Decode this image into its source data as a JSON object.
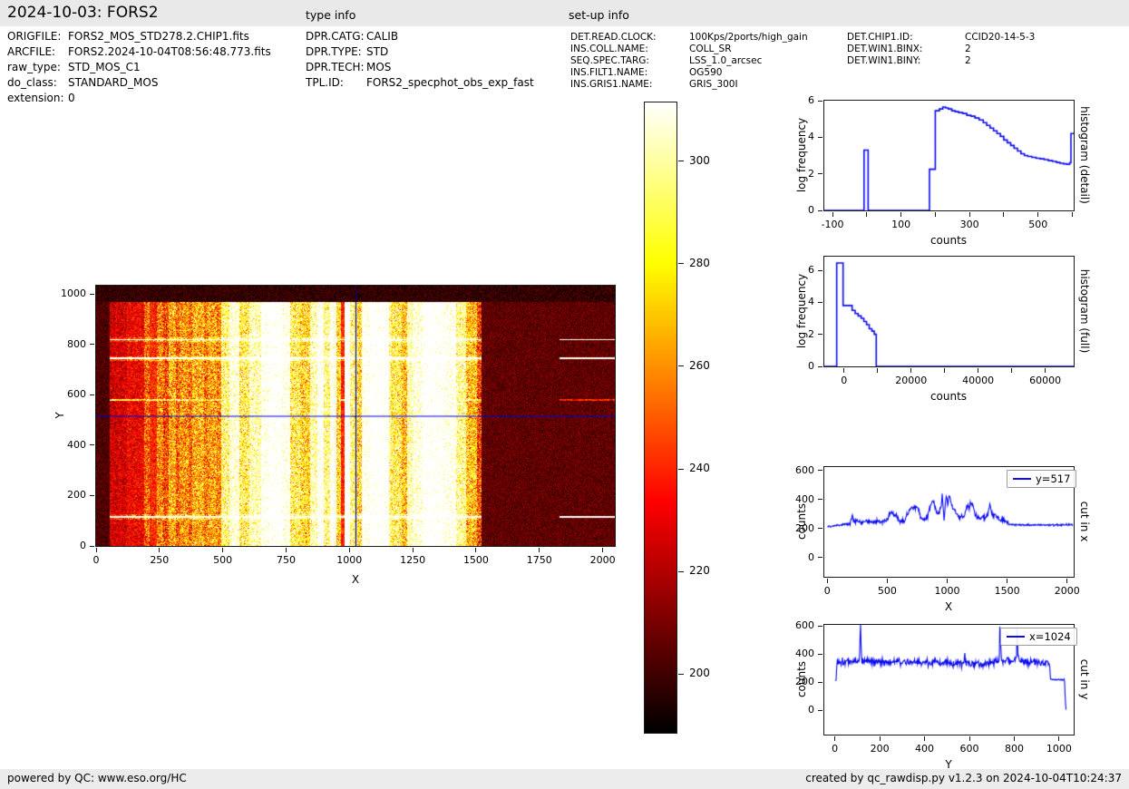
{
  "header": {
    "title": "2024-10-03: FORS2",
    "type_info_label": "type info",
    "setup_info_label": "set-up info"
  },
  "file_info": {
    "rows": [
      {
        "label": "ORIGFILE:",
        "value": "FORS2_MOS_STD278.2.CHIP1.fits"
      },
      {
        "label": "ARCFILE:",
        "value": "FORS2.2024-10-04T08:56:48.773.fits"
      },
      {
        "label": "raw_type:",
        "value": "STD_MOS_C1"
      },
      {
        "label": "do_class:",
        "value": "STANDARD_MOS"
      },
      {
        "label": "extension:",
        "value": "0"
      }
    ]
  },
  "type_info": {
    "rows": [
      {
        "label": "DPR.CATG:",
        "value": "CALIB"
      },
      {
        "label": "DPR.TYPE:",
        "value": "STD"
      },
      {
        "label": "DPR.TECH:",
        "value": "MOS"
      },
      {
        "label": "TPL.ID:",
        "value": "FORS2_specphot_obs_exp_fast"
      }
    ]
  },
  "setup_info": {
    "col1": [
      {
        "label": "DET.READ.CLOCK:",
        "value": "100Kps/2ports/high_gain"
      },
      {
        "label": "INS.COLL.NAME:",
        "value": "COLL_SR"
      },
      {
        "label": "SEQ.SPEC.TARG:",
        "value": "LSS_1.0_arcsec"
      },
      {
        "label": "INS.FILT1.NAME:",
        "value": "OG590"
      },
      {
        "label": "INS.GRIS1.NAME:",
        "value": "GRIS_300I"
      }
    ],
    "col2": [
      {
        "label": "DET.CHIP1.ID:",
        "value": "CCID20-14-5-3"
      },
      {
        "label": "DET.WIN1.BINX:",
        "value": "2"
      },
      {
        "label": "DET.WIN1.BINY:",
        "value": "2"
      }
    ]
  },
  "footer": {
    "left": "powered by QC: www.eso.org/HC",
    "right": "created by qc_rawdisp.py v1.2.3 on 2024-10-04T10:24:37"
  },
  "colors": {
    "line_blue": "#0b0bf0",
    "crosshair_h": "#0000e0",
    "crosshair_v": "#00007a",
    "header_bg": "#e9e9e9",
    "footer_bg": "#ececec",
    "spine": "#1a1a1a"
  },
  "chart_data": [
    {
      "id": "raw_image",
      "type": "heatmap",
      "xlabel": "X",
      "ylabel": "Y",
      "xlim": [
        0,
        2048
      ],
      "ylim": [
        0,
        1034
      ],
      "xticks": [
        0,
        250,
        500,
        750,
        1000,
        1250,
        1500,
        1750,
        2000
      ],
      "yticks": [
        0,
        200,
        400,
        600,
        800,
        1000
      ],
      "colormap": "hot",
      "vmin": 188,
      "vmax": 312,
      "crosshair": {
        "x": 1024,
        "y": 517
      },
      "dark_top_y": 968,
      "exposed_x": [
        55,
        1520
      ],
      "right_lines_x": 1828,
      "colorbar": {
        "range": [
          188.5,
          311.5
        ],
        "ticks": [
          300,
          280,
          260,
          240,
          220,
          200
        ]
      },
      "stripes": [
        [
          0,
          55,
          202
        ],
        [
          55,
          120,
          226
        ],
        [
          120,
          190,
          232
        ],
        [
          190,
          210,
          252
        ],
        [
          210,
          240,
          240
        ],
        [
          240,
          265,
          258
        ],
        [
          265,
          285,
          245
        ],
        [
          285,
          315,
          268
        ],
        [
          315,
          330,
          250
        ],
        [
          330,
          365,
          262
        ],
        [
          365,
          380,
          252
        ],
        [
          380,
          425,
          268
        ],
        [
          425,
          440,
          255
        ],
        [
          440,
          475,
          265
        ],
        [
          475,
          495,
          258
        ],
        [
          495,
          525,
          295
        ],
        [
          525,
          565,
          318
        ],
        [
          565,
          605,
          288
        ],
        [
          605,
          650,
          308
        ],
        [
          650,
          685,
          330
        ],
        [
          685,
          735,
          340
        ],
        [
          735,
          765,
          325
        ],
        [
          765,
          805,
          288
        ],
        [
          805,
          845,
          278
        ],
        [
          845,
          872,
          308
        ],
        [
          872,
          898,
          332
        ],
        [
          898,
          925,
          298
        ],
        [
          925,
          948,
          330
        ],
        [
          948,
          968,
          278
        ],
        [
          968,
          980,
          238
        ],
        [
          980,
          1002,
          342
        ],
        [
          1002,
          1030,
          298
        ],
        [
          1030,
          1048,
          278
        ],
        [
          1048,
          1082,
          330
        ],
        [
          1082,
          1112,
          342
        ],
        [
          1112,
          1155,
          340
        ],
        [
          1155,
          1165,
          300
        ],
        [
          1165,
          1205,
          288
        ],
        [
          1205,
          1228,
          272
        ],
        [
          1228,
          1250,
          308
        ],
        [
          1250,
          1290,
          320
        ],
        [
          1290,
          1345,
          342
        ],
        [
          1345,
          1372,
          338
        ],
        [
          1372,
          1422,
          328
        ],
        [
          1422,
          1462,
          300
        ],
        [
          1462,
          1505,
          272
        ],
        [
          1505,
          1520,
          245
        ],
        [
          1520,
          2048,
          205
        ]
      ],
      "hlines": [
        [
          115,
          7,
          400,
          340
        ],
        [
          580,
          4,
          290,
          238
        ],
        [
          745,
          6,
          380,
          330
        ],
        [
          820,
          5,
          360,
          325
        ]
      ]
    },
    {
      "id": "hist_detail",
      "type": "step",
      "side_label": "histogram (detail)",
      "xlabel": "counts",
      "ylabel": "log frequency",
      "xlim": [
        -124,
        604
      ],
      "ylim": [
        0,
        6
      ],
      "xticks": [
        -100,
        100,
        300,
        500
      ],
      "xticks_minor": [
        0,
        200,
        400,
        600
      ],
      "yticks": [
        0,
        2,
        4,
        6
      ],
      "steps": [
        [
          -124,
          0
        ],
        [
          -8,
          3.3
        ],
        [
          4,
          0
        ],
        [
          183,
          2.25
        ],
        [
          200,
          5.45
        ],
        [
          212,
          5.55
        ],
        [
          222,
          5.65
        ],
        [
          230,
          5.6
        ],
        [
          238,
          5.55
        ],
        [
          248,
          5.45
        ],
        [
          258,
          5.4
        ],
        [
          268,
          5.35
        ],
        [
          280,
          5.3
        ],
        [
          292,
          5.2
        ],
        [
          304,
          5.15
        ],
        [
          316,
          5.05
        ],
        [
          328,
          4.95
        ],
        [
          340,
          4.8
        ],
        [
          350,
          4.65
        ],
        [
          360,
          4.5
        ],
        [
          370,
          4.35
        ],
        [
          380,
          4.2
        ],
        [
          390,
          4.05
        ],
        [
          400,
          3.85
        ],
        [
          410,
          3.7
        ],
        [
          420,
          3.55
        ],
        [
          430,
          3.4
        ],
        [
          440,
          3.25
        ],
        [
          450,
          3.1
        ],
        [
          460,
          3.0
        ],
        [
          470,
          2.95
        ],
        [
          482,
          2.9
        ],
        [
          494,
          2.85
        ],
        [
          506,
          2.82
        ],
        [
          518,
          2.78
        ],
        [
          530,
          2.72
        ],
        [
          542,
          2.68
        ],
        [
          554,
          2.62
        ],
        [
          564,
          2.58
        ],
        [
          574,
          2.55
        ],
        [
          584,
          2.52
        ],
        [
          592,
          2.6
        ],
        [
          596,
          4.2
        ]
      ]
    },
    {
      "id": "hist_full",
      "type": "step",
      "side_label": "histogram (full)",
      "xlabel": "counts",
      "ylabel": "log frequency",
      "xlim": [
        -5900,
        68500
      ],
      "ylim": [
        0,
        6.85
      ],
      "xticks": [
        0,
        20000,
        40000,
        60000
      ],
      "xticks_minor": [
        10000,
        30000,
        50000
      ],
      "yticks": [
        0,
        2,
        4,
        6
      ],
      "steps": [
        [
          -5900,
          0
        ],
        [
          -2200,
          6.45
        ],
        [
          -300,
          3.8
        ],
        [
          2400,
          3.5
        ],
        [
          3300,
          3.3
        ],
        [
          4200,
          3.15
        ],
        [
          5100,
          3.0
        ],
        [
          5900,
          2.8
        ],
        [
          6700,
          2.6
        ],
        [
          7500,
          2.35
        ],
        [
          8300,
          2.2
        ],
        [
          9000,
          2.0
        ],
        [
          9600,
          0
        ]
      ]
    },
    {
      "id": "cut_x",
      "type": "line",
      "side_label": "cut in x",
      "xlabel": "X",
      "ylabel": "counts",
      "legend": "y=517",
      "xlim": [
        -25,
        2055
      ],
      "ylim": [
        -132,
        623
      ],
      "xticks": [
        0,
        500,
        1000,
        1500,
        2000
      ],
      "yticks": [
        0,
        200,
        400,
        600
      ],
      "noise_hi": 8,
      "noise_lo": 3.5,
      "noise_threshold": 235,
      "points": [
        [
          0,
          214
        ],
        [
          50,
          217
        ],
        [
          90,
          220
        ],
        [
          140,
          228
        ],
        [
          190,
          240
        ],
        [
          210,
          295
        ],
        [
          218,
          255
        ],
        [
          250,
          247
        ],
        [
          290,
          243
        ],
        [
          330,
          250
        ],
        [
          370,
          247
        ],
        [
          410,
          255
        ],
        [
          445,
          246
        ],
        [
          475,
          252
        ],
        [
          500,
          258
        ],
        [
          515,
          290
        ],
        [
          530,
          312
        ],
        [
          545,
          300
        ],
        [
          560,
          288
        ],
        [
          575,
          298
        ],
        [
          595,
          255
        ],
        [
          620,
          246
        ],
        [
          645,
          255
        ],
        [
          665,
          298
        ],
        [
          685,
          325
        ],
        [
          705,
          342
        ],
        [
          720,
          352
        ],
        [
          735,
          338
        ],
        [
          748,
          350
        ],
        [
          762,
          328
        ],
        [
          778,
          272
        ],
        [
          800,
          266
        ],
        [
          822,
          262
        ],
        [
          840,
          295
        ],
        [
          858,
          355
        ],
        [
          872,
          378
        ],
        [
          885,
          392
        ],
        [
          895,
          358
        ],
        [
          905,
          332
        ],
        [
          915,
          308
        ],
        [
          928,
          300
        ],
        [
          940,
          328
        ],
        [
          950,
          362
        ],
        [
          958,
          425
        ],
        [
          964,
          378
        ],
        [
          969,
          308
        ],
        [
          974,
          232
        ],
        [
          979,
          298
        ],
        [
          984,
          385
        ],
        [
          989,
          408
        ],
        [
          994,
          428
        ],
        [
          999,
          392
        ],
        [
          1004,
          358
        ],
        [
          1009,
          388
        ],
        [
          1014,
          418
        ],
        [
          1019,
          428
        ],
        [
          1025,
          398
        ],
        [
          1032,
          378
        ],
        [
          1042,
          358
        ],
        [
          1052,
          342
        ],
        [
          1062,
          326
        ],
        [
          1072,
          308
        ],
        [
          1082,
          293
        ],
        [
          1092,
          280
        ],
        [
          1102,
          274
        ],
        [
          1112,
          288
        ],
        [
          1122,
          278
        ],
        [
          1132,
          269
        ],
        [
          1142,
          284
        ],
        [
          1152,
          318
        ],
        [
          1162,
          342
        ],
        [
          1172,
          358
        ],
        [
          1180,
          352
        ],
        [
          1186,
          330
        ],
        [
          1191,
          358
        ],
        [
          1197,
          373
        ],
        [
          1204,
          368
        ],
        [
          1213,
          352
        ],
        [
          1222,
          338
        ],
        [
          1232,
          298
        ],
        [
          1242,
          278
        ],
        [
          1252,
          271
        ],
        [
          1262,
          278
        ],
        [
          1272,
          274
        ],
        [
          1282,
          269
        ],
        [
          1292,
          283
        ],
        [
          1302,
          276
        ],
        [
          1312,
          271
        ],
        [
          1322,
          279
        ],
        [
          1332,
          288
        ],
        [
          1342,
          308
        ],
        [
          1350,
          342
        ],
        [
          1356,
          368
        ],
        [
          1362,
          348
        ],
        [
          1370,
          318
        ],
        [
          1380,
          293
        ],
        [
          1390,
          283
        ],
        [
          1400,
          298
        ],
        [
          1410,
          288
        ],
        [
          1420,
          278
        ],
        [
          1430,
          268
        ],
        [
          1440,
          261
        ],
        [
          1452,
          257
        ],
        [
          1462,
          266
        ],
        [
          1472,
          260
        ],
        [
          1482,
          253
        ],
        [
          1492,
          246
        ],
        [
          1505,
          236
        ],
        [
          1525,
          229
        ],
        [
          1560,
          226
        ],
        [
          1640,
          224
        ],
        [
          1750,
          225
        ],
        [
          1850,
          224
        ],
        [
          1950,
          226
        ],
        [
          2048,
          227
        ]
      ]
    },
    {
      "id": "cut_y",
      "type": "line",
      "side_label": "cut in y",
      "xlabel": "Y",
      "ylabel": "counts",
      "legend": "x=1024",
      "xlim": [
        -47,
        1065
      ],
      "ylim": [
        -172,
        608
      ],
      "xticks": [
        0,
        200,
        400,
        600,
        800,
        1000
      ],
      "yticks": [
        0,
        200,
        400,
        600
      ],
      "noise_hi": 13,
      "noise_lo": 3.5,
      "noise_threshold": 300,
      "points": [
        [
          0,
          212
        ],
        [
          6,
          215
        ],
        [
          9,
          345
        ],
        [
          30,
          350
        ],
        [
          60,
          347
        ],
        [
          90,
          350
        ],
        [
          110,
          358
        ],
        [
          112,
          470
        ],
        [
          114,
          650
        ],
        [
          117,
          460
        ],
        [
          120,
          358
        ],
        [
          150,
          346
        ],
        [
          200,
          348
        ],
        [
          250,
          344
        ],
        [
          300,
          346
        ],
        [
          350,
          341
        ],
        [
          400,
          343
        ],
        [
          450,
          339
        ],
        [
          500,
          336
        ],
        [
          530,
          331
        ],
        [
          560,
          334
        ],
        [
          577,
          336
        ],
        [
          579,
          458
        ],
        [
          582,
          336
        ],
        [
          610,
          331
        ],
        [
          650,
          334
        ],
        [
          690,
          341
        ],
        [
          720,
          350
        ],
        [
          733,
          352
        ],
        [
          736,
          650
        ],
        [
          739,
          470
        ],
        [
          743,
          358
        ],
        [
          760,
          351
        ],
        [
          790,
          352
        ],
        [
          810,
          354
        ],
        [
          813,
          650
        ],
        [
          816,
          410
        ],
        [
          820,
          354
        ],
        [
          850,
          349
        ],
        [
          880,
          347
        ],
        [
          910,
          344
        ],
        [
          935,
          344
        ],
        [
          955,
          347
        ],
        [
          958,
          310
        ],
        [
          962,
          222
        ],
        [
          1000,
          220
        ],
        [
          1024,
          219
        ],
        [
          1028,
          60
        ],
        [
          1031,
          8
        ],
        [
          1034,
          5
        ]
      ]
    }
  ]
}
